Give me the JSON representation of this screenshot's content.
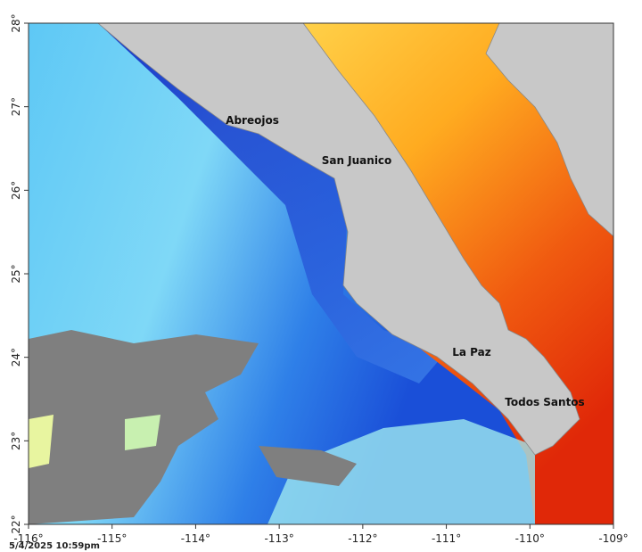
{
  "map": {
    "x_ticks": [
      "-116°",
      "-115°",
      "-114°",
      "-113°",
      "-112°",
      "-111°",
      "-110°",
      "-109°"
    ],
    "y_ticks": [
      "22°",
      "23°",
      "24°",
      "25°",
      "26°",
      "27°",
      "28°"
    ],
    "places": [
      {
        "label": "Abreojos"
      },
      {
        "label": "San Juanico"
      },
      {
        "label": "La Paz"
      },
      {
        "label": "Todos Santos"
      }
    ],
    "timestamp": "5/4/2025 10:59pm"
  }
}
